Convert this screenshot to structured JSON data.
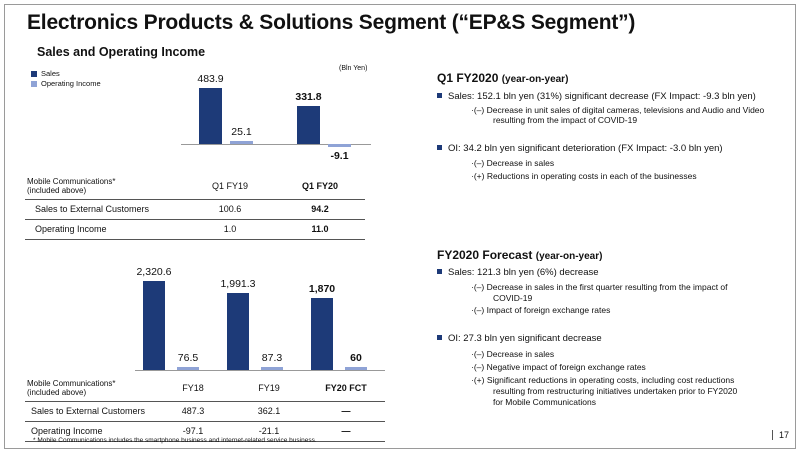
{
  "title": "Electronics Products & Solutions Segment (“EP&S Segment”)",
  "subtitle": "Sales and Operating Income",
  "unit": "(Bln Yen)",
  "legend": {
    "sales": "Sales",
    "oi": "Operating Income"
  },
  "colors": {
    "sales": "#1d3a78",
    "oi": "#8fa3d6"
  },
  "chart_data": [
    {
      "type": "bar",
      "categories": [
        "Q1 FY19",
        "Q1 FY20"
      ],
      "series": [
        {
          "name": "Sales",
          "values": [
            483.9,
            331.8
          ]
        },
        {
          "name": "Operating Income",
          "values": [
            25.1,
            -9.1
          ]
        }
      ],
      "labels": {
        "sales": [
          "483.9",
          "331.8"
        ],
        "oi": [
          "25.1",
          "-9.1"
        ]
      }
    },
    {
      "type": "bar",
      "categories": [
        "FY18",
        "FY19",
        "FY20 FCT"
      ],
      "series": [
        {
          "name": "Sales",
          "values": [
            2320.6,
            1991.3,
            1870
          ]
        },
        {
          "name": "Operating Income",
          "values": [
            76.5,
            87.3,
            60
          ]
        }
      ],
      "labels": {
        "sales": [
          "2,320.6",
          "1,991.3",
          "1,870"
        ],
        "oi": [
          "76.5",
          "87.3",
          "60"
        ]
      }
    }
  ],
  "table1": {
    "head": [
      "Mobile Communications*",
      "(included above)",
      "Q1 FY19",
      "Q1 FY20"
    ],
    "rows": [
      [
        "Sales to External Customers",
        "100.6",
        "94.2"
      ],
      [
        "Operating Income",
        "1.0",
        "11.0"
      ]
    ]
  },
  "table2": {
    "head": [
      "Mobile Communications*",
      "(included above)",
      "FY18",
      "FY19",
      "FY20 FCT"
    ],
    "rows": [
      [
        "Sales to External Customers",
        "487.3",
        "362.1",
        "—"
      ],
      [
        "Operating Income",
        "-97.1",
        "-21.1",
        "—"
      ]
    ]
  },
  "q1": {
    "head": "Q1 FY2020",
    "head_sm": "(year-on-year)",
    "sales": "Sales: 152.1 bln yen (31%) significant decrease (FX Impact: -9.3 bln yen)",
    "sales_sub1": "·(–) Decrease in unit sales of digital cameras, televisions and Audio and Video",
    "sales_sub2": "resulting from the impact of COVID-19",
    "oi": "OI: 34.2 bln yen significant deterioration  (FX Impact: -3.0 bln yen)",
    "oi_sub1": "·(–) Decrease in sales",
    "oi_sub2": "·(+) Reductions in operating costs in each of the businesses"
  },
  "fc": {
    "head": "FY2020 Forecast",
    "head_sm": "(year-on-year)",
    "sales": "Sales: 121.3 bln yen (6%) decrease",
    "sales_sub1": "·(–) Decrease in sales in the first quarter resulting from the impact of",
    "sales_sub2": "COVID-19",
    "sales_sub3": "·(–) Impact of foreign exchange rates",
    "oi": "OI: 27.3 bln yen significant decrease",
    "oi_sub1": "·(–) Decrease in sales",
    "oi_sub2": "·(–) Negative impact of foreign exchange rates",
    "oi_sub3": "·(+)  Significant reductions in operating costs, including cost reductions",
    "oi_sub4": "resulting from restructuring initiatives undertaken prior to FY2020",
    "oi_sub5": "for Mobile Communications"
  },
  "footnote": "* Mobile Communications includes the smartphone business and internet-related service business.",
  "page": "17"
}
